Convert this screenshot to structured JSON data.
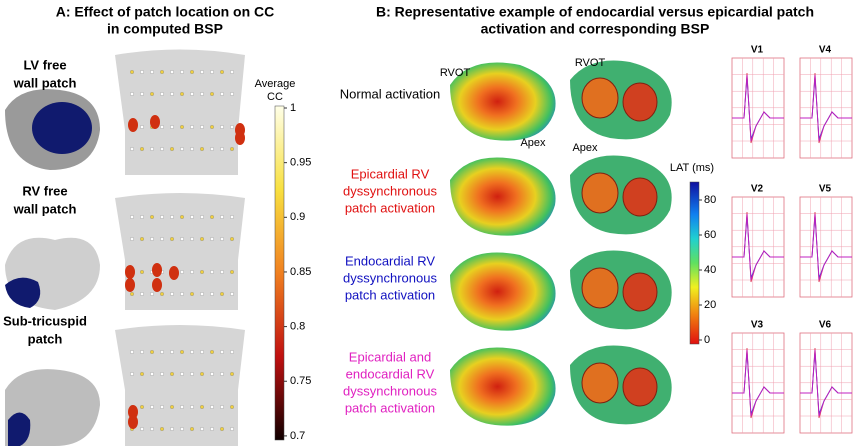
{
  "panel_a": {
    "title": [
      "A: Effect of patch location on CC",
      "in computed BSP"
    ],
    "rows": [
      [
        "LV free",
        "wall patch"
      ],
      [
        "RV free",
        "wall patch"
      ],
      [
        "Sub-tricuspid",
        "patch"
      ]
    ],
    "colorbar": {
      "title": [
        "Average",
        "CC"
      ],
      "ticks": [
        1,
        0.95,
        0.9,
        0.85,
        0.8,
        0.75,
        0.7
      ]
    }
  },
  "panel_b": {
    "title": [
      "B: Representative example of endocardial versus epicardial patch",
      "activation and corresponding BSP"
    ],
    "heart_labels": [
      "RVOT",
      "RVOT",
      "Apex",
      "Apex"
    ],
    "rows": [
      [
        "Normal activation"
      ],
      [
        "Epicardial RV",
        "dyssynchronous",
        "patch activation"
      ],
      [
        "Endocardial RV",
        "dyssynchronous",
        "patch activation"
      ],
      [
        "Epicardial and",
        "endocardial RV",
        "dyssynchronous",
        "patch activation"
      ]
    ],
    "colorbar": {
      "title": "LAT (ms)",
      "ticks": [
        80,
        60,
        40,
        20,
        0
      ]
    },
    "leads": [
      "V1",
      "V4",
      "V2",
      "V5",
      "V3",
      "V6"
    ]
  }
}
